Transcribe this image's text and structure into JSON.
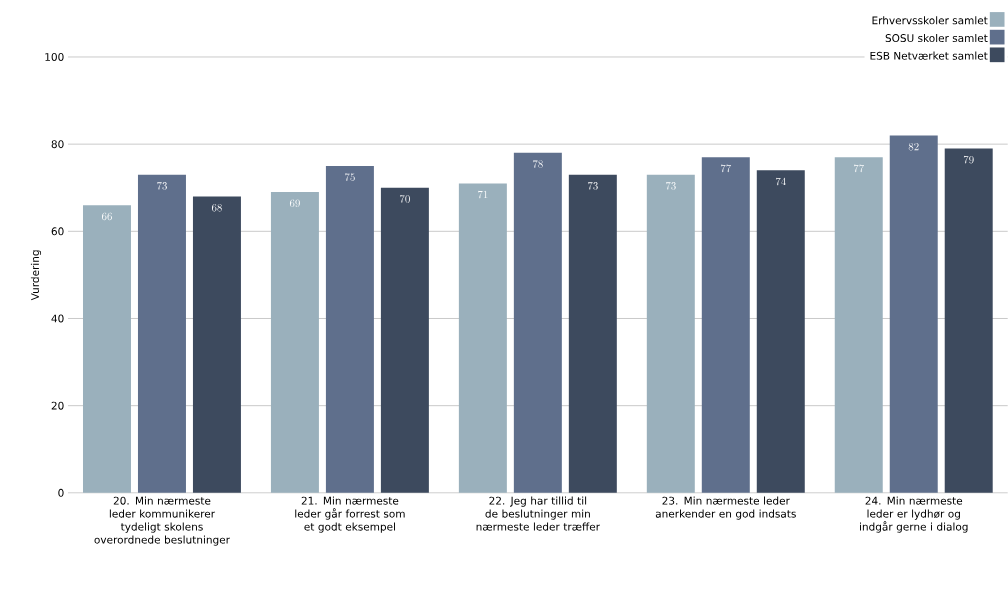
{
  "chart_data": {
    "type": "bar",
    "ylabel": "Vurdering",
    "categories": [
      "20. Min nærmeste leder kommunikerer tydeligt skolens overordnede beslutninger",
      "21. Min nærmeste leder går forrest som et godt eksempel",
      "22. Jeg har tillid til de beslutninger min nærmeste leder træffer",
      "23. Min nærmeste leder anerkender en god indsats",
      "24. Min nærmeste leder er lydhør og indgår gerne i dialog"
    ],
    "series": [
      {
        "name": "Erhvervsskoler samlet",
        "color": "#9ab0bc",
        "values": [
          66,
          69,
          71,
          73,
          77
        ]
      },
      {
        "name": "SOSU skoler samlet",
        "color": "#5f6f8c",
        "values": [
          73,
          75,
          78,
          77,
          82
        ]
      },
      {
        "name": "ESB Netværket samlet",
        "color": "#3d4a5e",
        "values": [
          68,
          70,
          73,
          74,
          79
        ]
      }
    ],
    "ylim": [
      0,
      100
    ],
    "yticks": [
      0,
      20,
      40,
      60,
      80,
      100
    ],
    "grid": "y",
    "legend": "top right",
    "data_labels": true
  }
}
